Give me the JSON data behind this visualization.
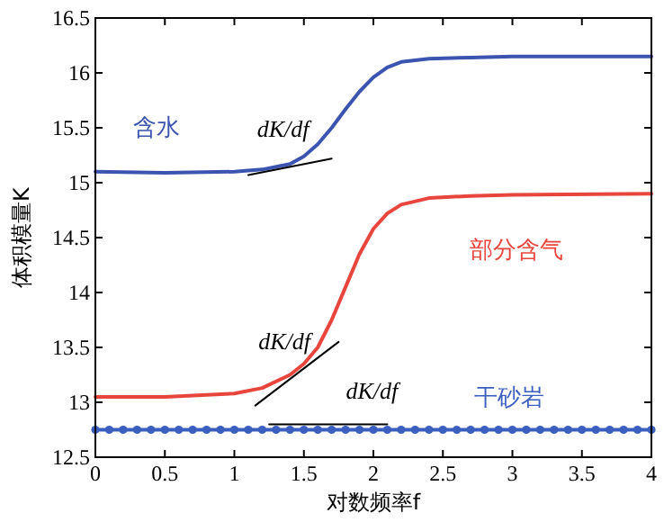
{
  "chart_data": {
    "type": "line",
    "xlabel": "对数频率f",
    "ylabel": "体积模量K",
    "xlim": [
      0,
      4
    ],
    "ylim": [
      12.5,
      16.5
    ],
    "xticks": [
      0,
      0.5,
      1,
      1.5,
      2,
      2.5,
      3,
      3.5,
      4
    ],
    "yticks": [
      12.5,
      13,
      13.5,
      14,
      14.5,
      15,
      15.5,
      16,
      16.5
    ],
    "grid": false,
    "series": [
      {
        "name": "含水",
        "color": "#3b54b0",
        "marker": "none",
        "x": [
          0,
          0.5,
          1,
          1.2,
          1.4,
          1.5,
          1.6,
          1.7,
          1.8,
          1.9,
          2,
          2.1,
          2.2,
          2.4,
          2.7,
          3,
          4
        ],
        "values": [
          15.1,
          15.09,
          15.1,
          15.12,
          15.17,
          15.24,
          15.35,
          15.5,
          15.67,
          15.83,
          15.96,
          16.05,
          16.1,
          16.13,
          16.14,
          16.15,
          16.15
        ]
      },
      {
        "name": "部分含气",
        "color": "#e8453c",
        "marker": "none",
        "x": [
          0,
          0.5,
          1,
          1.2,
          1.4,
          1.5,
          1.6,
          1.7,
          1.8,
          1.9,
          2,
          2.1,
          2.2,
          2.4,
          2.7,
          3,
          4
        ],
        "values": [
          13.05,
          13.05,
          13.08,
          13.13,
          13.25,
          13.35,
          13.5,
          13.75,
          14.05,
          14.35,
          14.58,
          14.72,
          14.8,
          14.86,
          14.88,
          14.89,
          14.9
        ]
      },
      {
        "name": "干砂岩",
        "color": "#3a5fbf",
        "marker": "circle",
        "x": [
          0,
          0.1,
          0.2,
          0.3,
          0.4,
          0.5,
          0.6,
          0.7,
          0.8,
          0.9,
          1,
          1.1,
          1.2,
          1.3,
          1.4,
          1.5,
          1.6,
          1.7,
          1.8,
          1.9,
          2,
          2.1,
          2.2,
          2.3,
          2.4,
          2.5,
          2.6,
          2.7,
          2.8,
          2.9,
          3,
          3.1,
          3.2,
          3.3,
          3.4,
          3.5,
          3.6,
          3.7,
          3.8,
          3.9,
          4
        ],
        "values": [
          12.75,
          12.75,
          12.75,
          12.75,
          12.75,
          12.75,
          12.75,
          12.75,
          12.75,
          12.75,
          12.75,
          12.75,
          12.75,
          12.75,
          12.75,
          12.75,
          12.75,
          12.75,
          12.75,
          12.75,
          12.75,
          12.75,
          12.75,
          12.75,
          12.75,
          12.75,
          12.75,
          12.75,
          12.75,
          12.75,
          12.75,
          12.75,
          12.75,
          12.75,
          12.75,
          12.75,
          12.75,
          12.75,
          12.75,
          12.75,
          12.75
        ]
      },
      {
        "color": "#000000",
        "marker": "none",
        "x": [
          1.1,
          1.7
        ],
        "values": [
          15.07,
          15.22
        ]
      },
      {
        "color": "#000000",
        "marker": "none",
        "x": [
          1.15,
          1.75
        ],
        "values": [
          12.97,
          13.55
        ]
      },
      {
        "color": "#000000",
        "marker": "none",
        "x": [
          1.25,
          2.1
        ],
        "values": [
          12.8,
          12.8
        ]
      }
    ],
    "annotations": [
      "dK/df",
      "dK/df",
      "dK/df"
    ]
  }
}
